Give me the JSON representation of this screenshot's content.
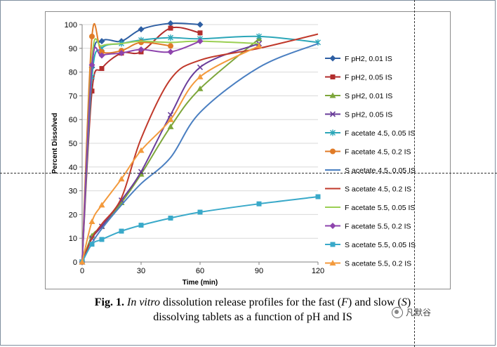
{
  "caption": {
    "fig_label": "Fig. 1.",
    "italic_lead": "In vitro",
    "text_part1": "dissolution release profiles for the fast (",
    "f_letter": "F",
    "text_part2": ") and slow (",
    "s_letter": "S",
    "text_part3": ")",
    "line2": "dissolving tablets as a function of pH and IS"
  },
  "watermark": {
    "text": "凡默谷"
  },
  "chart_data": {
    "type": "line",
    "title": "",
    "xlabel": "Time (min)",
    "ylabel": "Percent Dissolved",
    "xlim": [
      0,
      120
    ],
    "ylim": [
      0,
      100
    ],
    "xticks": [
      0,
      30,
      60,
      90,
      120
    ],
    "yticks": [
      0,
      10,
      20,
      30,
      40,
      50,
      60,
      70,
      80,
      90,
      100
    ],
    "legend_position": "right",
    "series": [
      {
        "name": "F pH2, 0.01 IS",
        "color": "#2e5fa3",
        "marker": "diamond",
        "x": [
          0,
          5,
          10,
          20,
          30,
          45,
          60
        ],
        "y": [
          0,
          82,
          93,
          93,
          98,
          100.5,
          100
        ]
      },
      {
        "name": "F pH2, 0.05 IS",
        "color": "#b22d2d",
        "marker": "square",
        "x": [
          0,
          5,
          10,
          20,
          30,
          45,
          60
        ],
        "y": [
          0,
          72,
          81.5,
          88,
          88.5,
          98.5,
          96.5
        ]
      },
      {
        "name": "S pH2, 0.01 IS",
        "color": "#7da63b",
        "marker": "triangle",
        "x": [
          0,
          5,
          10,
          20,
          30,
          45,
          60,
          90
        ],
        "y": [
          0,
          11,
          15,
          25,
          37,
          57,
          73,
          94
        ]
      },
      {
        "name": "S pH2, 0.05 IS",
        "color": "#6a3d9a",
        "marker": "x",
        "x": [
          0,
          5,
          10,
          20,
          30,
          45,
          60,
          90
        ],
        "y": [
          0,
          10,
          15,
          26,
          38,
          62,
          82,
          92
        ]
      },
      {
        "name": "F acetate 4.5, 0.05 IS",
        "color": "#2ba6b8",
        "marker": "star",
        "x": [
          0,
          5,
          10,
          20,
          30,
          45,
          60,
          90,
          120
        ],
        "y": [
          0,
          78,
          90,
          92,
          93.5,
          94.5,
          94,
          95,
          92.5
        ]
      },
      {
        "name": "F acetate 4.5, 0.2 IS",
        "color": "#e07b27",
        "marker": "circle",
        "x": [
          0,
          5,
          10,
          20,
          30,
          45
        ],
        "y": [
          0,
          95,
          88.5,
          89,
          92.5,
          91
        ]
      },
      {
        "name": "S acetate 4.5, 0.05 IS",
        "color": "#4a7fc1",
        "marker": "none",
        "x": [
          0,
          5,
          10,
          20,
          30,
          45,
          60,
          90,
          120
        ],
        "y": [
          0,
          8,
          14,
          24,
          33,
          44,
          63,
          82,
          92
        ]
      },
      {
        "name": "S acetate 4.5, 0.2 IS",
        "color": "#c0392b",
        "marker": "none",
        "x": [
          0,
          5,
          10,
          20,
          30,
          45,
          60,
          90,
          120
        ],
        "y": [
          0,
          10,
          16,
          27,
          52,
          77,
          85,
          90,
          96
        ]
      },
      {
        "name": "F acetate 5.5, 0.05 IS",
        "color": "#9bcf53",
        "marker": "none",
        "x": [
          0,
          5,
          10,
          20,
          30,
          45,
          60,
          90
        ],
        "y": [
          0,
          86,
          91,
          92,
          93,
          92.5,
          93,
          92
        ]
      },
      {
        "name": "F acetate 5.5, 0.2 IS",
        "color": "#8e44ad",
        "marker": "diamond",
        "x": [
          0,
          5,
          10,
          20,
          30,
          45,
          60
        ],
        "y": [
          0,
          83,
          87,
          88,
          89.5,
          88.5,
          93
        ]
      },
      {
        "name": "S acetate 5.5, 0.05 IS",
        "color": "#39a9c9",
        "marker": "square",
        "x": [
          0,
          5,
          10,
          20,
          30,
          45,
          60,
          90,
          120
        ],
        "y": [
          0,
          7.5,
          9.5,
          13,
          15.5,
          18.5,
          21,
          24.5,
          27.5
        ]
      },
      {
        "name": "S acetate 5.5, 0.2 IS",
        "color": "#f39a3c",
        "marker": "triangle",
        "x": [
          0,
          5,
          10,
          20,
          30,
          45,
          60,
          90
        ],
        "y": [
          0,
          17,
          24,
          35,
          47,
          60,
          78,
          91
        ]
      }
    ]
  }
}
